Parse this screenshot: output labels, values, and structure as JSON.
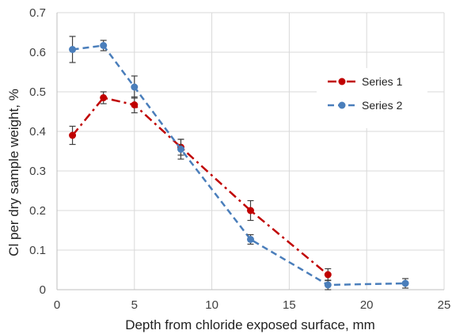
{
  "chart_data": {
    "type": "line",
    "title": "",
    "xlabel": "Depth from chloride exposed surface, mm",
    "ylabel": "Cl per dry sample weight, %",
    "xlim": [
      0,
      25
    ],
    "ylim": [
      0,
      0.7
    ],
    "x_ticks": [
      0,
      5,
      10,
      15,
      20,
      25
    ],
    "y_ticks": [
      0,
      0.1,
      0.2,
      0.3,
      0.4,
      0.5,
      0.6,
      0.7
    ],
    "x_tick_labels": [
      "0",
      "5",
      "10",
      "15",
      "20",
      "25"
    ],
    "y_tick_labels": [
      "0",
      "0.1",
      "0.2",
      "0.3",
      "0.4",
      "0.5",
      "0.6",
      "0.7"
    ],
    "grid": true,
    "legend_position": "right",
    "series": [
      {
        "name": "Series 1",
        "color": "#C00000",
        "line_style": "dash-dot",
        "x": [
          1,
          3,
          5,
          8,
          12.5,
          17.5
        ],
        "y": [
          0.39,
          0.485,
          0.467,
          0.36,
          0.2,
          0.038
        ],
        "error": [
          0.023,
          0.015,
          0.02,
          0.02,
          0.025,
          0.015
        ]
      },
      {
        "name": "Series 2",
        "color": "#4A7EBB",
        "line_style": "dashed",
        "x": [
          1,
          3,
          5,
          8,
          12.5,
          17.5,
          22.5
        ],
        "y": [
          0.607,
          0.617,
          0.512,
          0.355,
          0.127,
          0.012,
          0.016
        ],
        "error": [
          0.033,
          0.013,
          0.028,
          0.025,
          0.012,
          0.012,
          0.012
        ]
      }
    ]
  }
}
